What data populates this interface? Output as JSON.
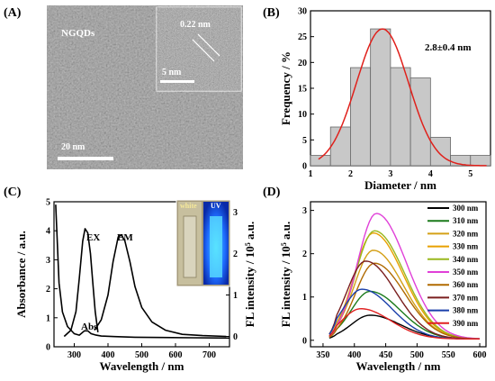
{
  "panels": {
    "a": {
      "label": "(A)",
      "sample_label": "NGQDs",
      "scale_bar": "20 nm",
      "inset_spacing": "0.22 nm",
      "inset_scale_bar": "5 nm"
    },
    "b": {
      "label": "(B)",
      "annotation": "2.8±0.4 nm"
    },
    "c": {
      "label": "(C)",
      "peak_labels": {
        "ex": "EX",
        "em": "EM",
        "abs": "Abs"
      },
      "inset_labels": {
        "white": "white",
        "uv": "UV"
      }
    },
    "d": {
      "label": "(D)"
    }
  },
  "chart_data": [
    {
      "id": "B",
      "type": "bar",
      "xlabel": "Diameter / nm",
      "ylabel": "Frequency / %",
      "xlim": [
        1.0,
        5.5
      ],
      "ylim": [
        0,
        30
      ],
      "xticks": [
        1,
        2,
        3,
        4,
        5
      ],
      "yticks": [
        0,
        5,
        10,
        15,
        20,
        25,
        30
      ],
      "bin_width": 0.5,
      "bins": [
        1.25,
        1.75,
        2.25,
        2.75,
        3.25,
        3.75,
        4.25,
        4.75,
        5.25
      ],
      "values": [
        2.0,
        7.5,
        19.0,
        26.5,
        19.0,
        17.0,
        5.5,
        2.0,
        2.0
      ],
      "fit": {
        "type": "gaussian",
        "center": 2.8,
        "sigma": 0.65,
        "amplitude": 26.5
      },
      "colors": {
        "bar": "#c8c8c8",
        "fit": "#e0201b"
      }
    },
    {
      "id": "C",
      "type": "line",
      "xlabel": "Wavelength / nm",
      "ylabel": "Absorbance / a.u.",
      "y2label": "FL intensity / 10^5 a.u.",
      "xlim": [
        240,
        760
      ],
      "ylim": [
        0,
        5
      ],
      "y2lim": [
        -0.25,
        3.25
      ],
      "xticks": [
        300,
        400,
        500,
        600,
        700
      ],
      "yticks": [
        0,
        1,
        2,
        3,
        4,
        5
      ],
      "y2ticks": [
        0,
        1,
        2,
        3
      ],
      "series": [
        {
          "name": "Abs",
          "axis": "left",
          "x": [
            245,
            255,
            265,
            280,
            300,
            315,
            330,
            340,
            350,
            365,
            380,
            420,
            480,
            560,
            650,
            760
          ],
          "y": [
            4.9,
            2.2,
            1.2,
            0.7,
            0.45,
            0.4,
            0.55,
            0.55,
            0.45,
            0.4,
            0.37,
            0.35,
            0.33,
            0.32,
            0.31,
            0.3
          ]
        },
        {
          "name": "EX",
          "axis": "right",
          "x": [
            270,
            290,
            305,
            315,
            325,
            332,
            340,
            348,
            355,
            362,
            370
          ],
          "y": [
            0.0,
            0.15,
            0.6,
            1.4,
            2.3,
            2.6,
            2.5,
            2.0,
            1.3,
            0.6,
            0.1
          ]
        },
        {
          "name": "EM",
          "axis": "right",
          "x": [
            360,
            380,
            400,
            415,
            430,
            440,
            450,
            465,
            480,
            500,
            530,
            570,
            620,
            680,
            750
          ],
          "y": [
            0.15,
            0.4,
            1.0,
            1.8,
            2.4,
            2.45,
            2.3,
            1.8,
            1.2,
            0.7,
            0.35,
            0.15,
            0.05,
            0.02,
            0.0
          ]
        }
      ]
    },
    {
      "id": "D",
      "type": "line",
      "xlabel": "Wavelength / nm",
      "ylabel": "FL intensity / 10^5 a.u.",
      "xlim": [
        330,
        610
      ],
      "ylim": [
        -0.15,
        3.2
      ],
      "xticks": [
        350,
        400,
        450,
        500,
        550,
        600
      ],
      "yticks": [
        0,
        1,
        2,
        3
      ],
      "series": [
        {
          "name": "300 nm",
          "color": "#000000",
          "peak_x": 425,
          "peak_y": 0.55
        },
        {
          "name": "310 nm",
          "color": "#1a7a1a",
          "peak_x": 425,
          "peak_y": 1.1
        },
        {
          "name": "320 nm",
          "color": "#d4a017",
          "peak_x": 430,
          "peak_y": 2.05
        },
        {
          "name": "330 nm",
          "color": "#e8a000",
          "peak_x": 430,
          "peak_y": 2.45
        },
        {
          "name": "340 nm",
          "color": "#99b81e",
          "peak_x": 432,
          "peak_y": 2.5
        },
        {
          "name": "350 nm",
          "color": "#e040d8",
          "peak_x": 435,
          "peak_y": 2.9
        },
        {
          "name": "360 nm",
          "color": "#b06a00",
          "peak_x": 432,
          "peak_y": 1.75
        },
        {
          "name": "370 nm",
          "color": "#7a1e1e",
          "peak_x": 418,
          "peak_y": 1.8
        },
        {
          "name": "380 nm",
          "color": "#1a3faa",
          "peak_x": 412,
          "peak_y": 1.15
        },
        {
          "name": "390 nm",
          "color": "#e02020",
          "peak_x": 410,
          "peak_y": 0.7
        }
      ],
      "peak_width_left": 30,
      "peak_width_right": 48,
      "onset": 360,
      "end": 600
    }
  ]
}
